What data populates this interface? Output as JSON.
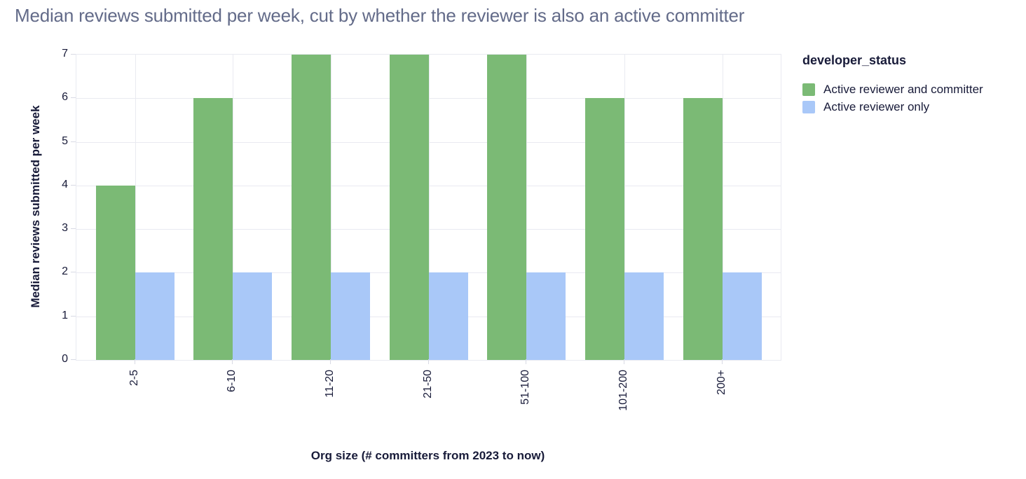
{
  "chart_data": {
    "type": "bar",
    "title": "Median reviews submitted per week, cut by whether the reviewer is also an active committer",
    "xlabel": "Org size (# committers from 2023 to now)",
    "ylabel": "Median reviews submitted per week",
    "categories": [
      "2-5",
      "6-10",
      "11-20",
      "21-50",
      "51-100",
      "101-200",
      "200+"
    ],
    "series": [
      {
        "name": "Active reviewer and committer",
        "color": "#7bba75",
        "values": [
          4,
          6,
          7,
          7,
          7,
          6,
          6
        ]
      },
      {
        "name": "Active reviewer only",
        "color": "#a9c8f8",
        "values": [
          2,
          2,
          2,
          2,
          2,
          2,
          2
        ]
      }
    ],
    "ylim": [
      0,
      7
    ],
    "yticks": [
      0,
      1,
      2,
      3,
      4,
      5,
      6,
      7
    ],
    "grid": true,
    "legend_title": "developer_status",
    "legend_position": "right"
  },
  "colors": {
    "background": "#ffffff",
    "title_text": "#636b89",
    "axis_text": "#181b39",
    "gridline": "#e9eaf1",
    "tick": "#d8dae4"
  }
}
